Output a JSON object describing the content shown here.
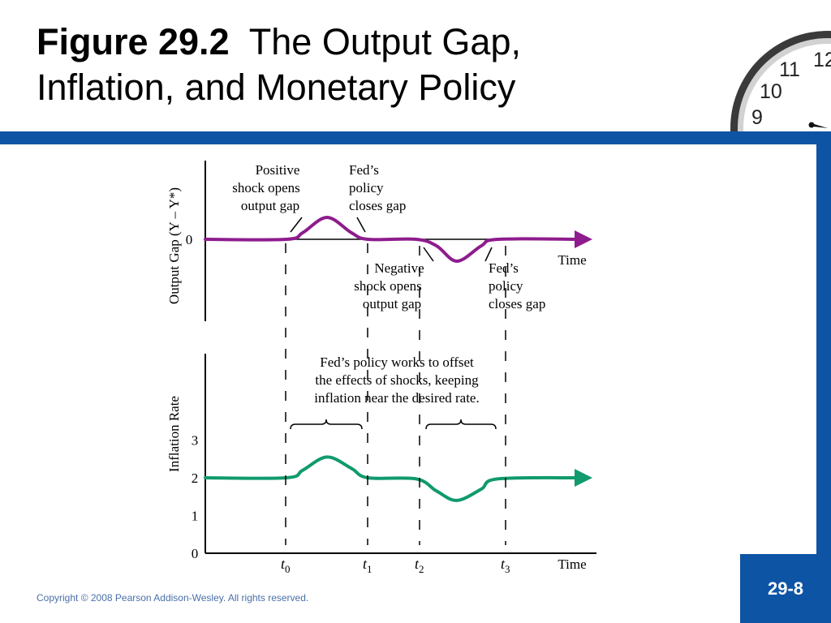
{
  "slide": {
    "title_bold": "Figure 29.2",
    "title_rest": "The Output Gap,",
    "title_line2": "Inflation, and Monetary Policy",
    "copyright": "Copyright © 2008 Pearson Addison-Wesley. All rights reserved.",
    "page_number": "29-8",
    "colors": {
      "band": "#0e54a4",
      "output_gap_line": "#8e1c8e",
      "inflation_line": "#109a6e"
    }
  },
  "clock_numerals": [
    "12",
    "11",
    "10",
    "9"
  ],
  "chart_data": [
    {
      "type": "line",
      "ylabel": "Output Gap (Y – Y*)",
      "xlabel": "Time",
      "y_tick_labels": [
        "0"
      ],
      "series": [
        {
          "points": [
            [
              0,
              0
            ],
            [
              1,
              0
            ],
            [
              1.2,
              0.3
            ],
            [
              1.5,
              1
            ],
            [
              1.8,
              0.3
            ],
            [
              2,
              0
            ],
            [
              2.6,
              0
            ],
            [
              2.85,
              -0.3
            ],
            [
              3.1,
              -1
            ],
            [
              3.4,
              -0.3
            ],
            [
              3.6,
              0
            ],
            [
              4.6,
              0
            ]
          ]
        }
      ],
      "annotations": [
        {
          "lines": [
            "Positive",
            "shock opens",
            "output gap"
          ]
        },
        {
          "lines": [
            "Fed’s",
            "policy",
            "closes gap"
          ]
        },
        {
          "lines": [
            "Negative",
            "shock opens",
            "output gap"
          ]
        },
        {
          "lines": [
            "Fed’s",
            "policy",
            "closes gap"
          ]
        }
      ]
    },
    {
      "type": "line",
      "ylabel": "Inflation Rate",
      "xlabel": "Time",
      "ylim": [
        0,
        3
      ],
      "yticks": [
        0,
        1,
        2,
        3
      ],
      "x_tick_labels": [
        {
          "base": "t",
          "sub": "0"
        },
        {
          "base": "t",
          "sub": "1"
        },
        {
          "base": "t",
          "sub": "2"
        },
        {
          "base": "t",
          "sub": "3"
        }
      ],
      "series": [
        {
          "points": [
            [
              0,
              2
            ],
            [
              1,
              2
            ],
            [
              1.2,
              2.2
            ],
            [
              1.5,
              2.55
            ],
            [
              1.8,
              2.25
            ],
            [
              2,
              2
            ],
            [
              2.6,
              1.97
            ],
            [
              2.85,
              1.65
            ],
            [
              3.1,
              1.4
            ],
            [
              3.4,
              1.7
            ],
            [
              3.6,
              1.97
            ],
            [
              4.6,
              2
            ]
          ]
        }
      ],
      "annotations": [
        {
          "lines": [
            "Fed’s policy works to offset",
            "the effects of shocks, keeping",
            "inflation near the desired rate."
          ]
        }
      ]
    }
  ]
}
